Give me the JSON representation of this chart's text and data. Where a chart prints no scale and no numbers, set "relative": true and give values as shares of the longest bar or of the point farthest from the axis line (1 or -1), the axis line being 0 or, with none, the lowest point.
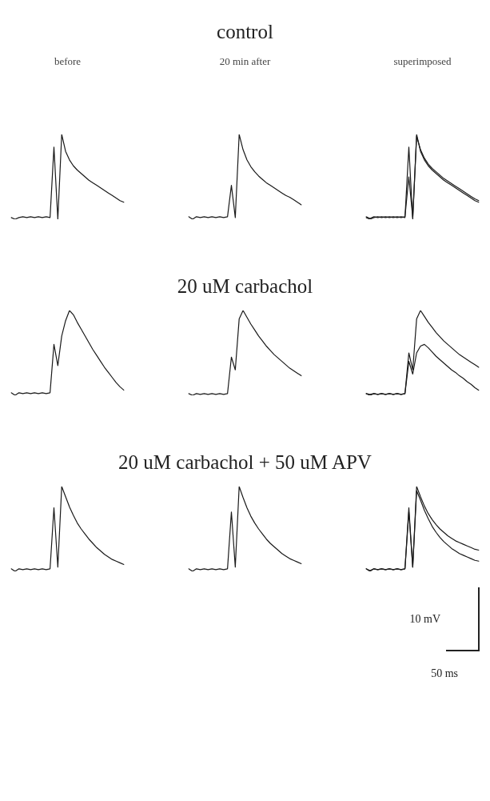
{
  "chart_data": [
    {
      "type": "line",
      "subtitle": "before",
      "relative": true,
      "categories": [
        null,
        null,
        null,
        null,
        null,
        null,
        null,
        null,
        null,
        null,
        null,
        null,
        null,
        null,
        null,
        null,
        null,
        null,
        null,
        null,
        null,
        null,
        null,
        null,
        null,
        null,
        null,
        null,
        null,
        null
      ],
      "color": "#1a1a1a",
      "values": [
        0.02,
        0.0,
        0.02,
        0.03,
        0.02,
        0.03,
        0.02,
        0.03,
        0.02,
        0.03,
        0.02,
        0.85,
        0.0,
        1.0,
        0.8,
        0.7,
        0.63,
        0.58,
        0.54,
        0.5,
        0.46,
        0.43,
        0.4,
        0.37,
        0.34,
        0.31,
        0.28,
        0.25,
        0.22,
        0.2
      ]
    },
    {
      "type": "line",
      "title": "control",
      "subtitle": "20 min after",
      "relative": true,
      "categories": [
        null,
        null,
        null,
        null,
        null,
        null,
        null,
        null,
        null,
        null,
        null,
        null,
        null,
        null,
        null,
        null,
        null,
        null,
        null,
        null,
        null,
        null,
        null,
        null,
        null,
        null,
        null,
        null,
        null,
        null
      ],
      "color": "#1a1a1a",
      "values": [
        0.03,
        0.0,
        0.03,
        0.02,
        0.03,
        0.02,
        0.03,
        0.02,
        0.03,
        0.02,
        0.03,
        0.4,
        0.02,
        1.0,
        0.82,
        0.7,
        0.62,
        0.56,
        0.51,
        0.47,
        0.43,
        0.4,
        0.37,
        0.34,
        0.31,
        0.28,
        0.26,
        0.23,
        0.2,
        0.17
      ]
    },
    {
      "type": "line",
      "subtitle": "superimposed",
      "relative": true,
      "categories": [
        null,
        null,
        null,
        null,
        null,
        null,
        null,
        null,
        null,
        null,
        null,
        null,
        null,
        null,
        null,
        null,
        null,
        null,
        null,
        null,
        null,
        null,
        null,
        null,
        null,
        null,
        null,
        null,
        null,
        null
      ],
      "series": [
        {
          "color": "#1a1a1a",
          "values": [
            0.02,
            0.0,
            0.02,
            0.03,
            0.02,
            0.03,
            0.02,
            0.03,
            0.02,
            0.03,
            0.02,
            0.85,
            0.0,
            1.0,
            0.8,
            0.7,
            0.63,
            0.58,
            0.54,
            0.5,
            0.46,
            0.43,
            0.4,
            0.37,
            0.34,
            0.31,
            0.28,
            0.25,
            0.22,
            0.2
          ]
        },
        {
          "color": "#1a1a1a",
          "values": [
            0.03,
            0.01,
            0.03,
            0.02,
            0.03,
            0.02,
            0.03,
            0.02,
            0.03,
            0.02,
            0.03,
            0.5,
            0.02,
            0.98,
            0.82,
            0.72,
            0.65,
            0.6,
            0.56,
            0.52,
            0.48,
            0.45,
            0.42,
            0.39,
            0.36,
            0.33,
            0.3,
            0.27,
            0.24,
            0.22
          ]
        }
      ]
    },
    {
      "type": "line",
      "relative": true,
      "categories": [
        null,
        null,
        null,
        null,
        null,
        null,
        null,
        null,
        null,
        null,
        null,
        null,
        null,
        null,
        null,
        null,
        null,
        null,
        null,
        null,
        null,
        null,
        null,
        null,
        null,
        null,
        null,
        null,
        null,
        null
      ],
      "color": "#1a1a1a",
      "values": [
        0.03,
        0.0,
        0.03,
        0.02,
        0.03,
        0.02,
        0.03,
        0.02,
        0.03,
        0.02,
        0.03,
        0.6,
        0.35,
        0.7,
        0.88,
        1.0,
        0.95,
        0.86,
        0.78,
        0.7,
        0.62,
        0.54,
        0.47,
        0.4,
        0.33,
        0.27,
        0.21,
        0.15,
        0.1,
        0.06
      ]
    },
    {
      "type": "line",
      "title": "20 uM  carbachol",
      "relative": true,
      "categories": [
        null,
        null,
        null,
        null,
        null,
        null,
        null,
        null,
        null,
        null,
        null,
        null,
        null,
        null,
        null,
        null,
        null,
        null,
        null,
        null,
        null,
        null,
        null,
        null,
        null,
        null,
        null,
        null,
        null,
        null
      ],
      "color": "#1a1a1a",
      "values": [
        0.02,
        0.0,
        0.02,
        0.01,
        0.02,
        0.01,
        0.02,
        0.01,
        0.02,
        0.01,
        0.02,
        0.45,
        0.3,
        0.9,
        1.0,
        0.92,
        0.84,
        0.77,
        0.7,
        0.64,
        0.58,
        0.53,
        0.48,
        0.44,
        0.4,
        0.36,
        0.32,
        0.29,
        0.26,
        0.23
      ]
    },
    {
      "type": "line",
      "relative": true,
      "categories": [
        null,
        null,
        null,
        null,
        null,
        null,
        null,
        null,
        null,
        null,
        null,
        null,
        null,
        null,
        null,
        null,
        null,
        null,
        null,
        null,
        null,
        null,
        null,
        null,
        null,
        null,
        null,
        null,
        null,
        null
      ],
      "series": [
        {
          "color": "#1a1a1a",
          "values": [
            0.02,
            0.0,
            0.02,
            0.01,
            0.02,
            0.01,
            0.02,
            0.01,
            0.02,
            0.01,
            0.02,
            0.5,
            0.3,
            0.9,
            1.0,
            0.93,
            0.86,
            0.8,
            0.74,
            0.69,
            0.64,
            0.6,
            0.56,
            0.52,
            0.48,
            0.45,
            0.42,
            0.39,
            0.36,
            0.33
          ]
        },
        {
          "color": "#1a1a1a",
          "values": [
            0.02,
            0.01,
            0.02,
            0.01,
            0.02,
            0.01,
            0.02,
            0.01,
            0.02,
            0.01,
            0.02,
            0.4,
            0.25,
            0.5,
            0.58,
            0.6,
            0.56,
            0.51,
            0.46,
            0.42,
            0.38,
            0.34,
            0.3,
            0.27,
            0.23,
            0.2,
            0.16,
            0.13,
            0.09,
            0.06
          ]
        }
      ]
    },
    {
      "type": "line",
      "relative": true,
      "categories": [
        null,
        null,
        null,
        null,
        null,
        null,
        null,
        null,
        null,
        null,
        null,
        null,
        null,
        null,
        null,
        null,
        null,
        null,
        null,
        null,
        null,
        null,
        null,
        null,
        null,
        null,
        null,
        null,
        null,
        null
      ],
      "color": "#1a1a1a",
      "values": [
        0.03,
        0.0,
        0.03,
        0.02,
        0.03,
        0.02,
        0.03,
        0.02,
        0.03,
        0.02,
        0.03,
        0.75,
        0.05,
        1.0,
        0.88,
        0.76,
        0.66,
        0.57,
        0.5,
        0.44,
        0.38,
        0.33,
        0.28,
        0.24,
        0.2,
        0.17,
        0.14,
        0.12,
        0.1,
        0.08
      ]
    },
    {
      "type": "line",
      "relative": true,
      "categories": [
        null,
        null,
        null,
        null,
        null,
        null,
        null,
        null,
        null,
        null,
        null,
        null,
        null,
        null,
        null,
        null,
        null,
        null,
        null,
        null,
        null,
        null,
        null,
        null,
        null,
        null,
        null,
        null,
        null,
        null
      ],
      "color": "#1a1a1a",
      "title": "20 uM carbachol + 50 uM APV",
      "values": [
        0.03,
        0.0,
        0.03,
        0.02,
        0.03,
        0.02,
        0.03,
        0.02,
        0.03,
        0.02,
        0.03,
        0.7,
        0.05,
        1.0,
        0.87,
        0.75,
        0.65,
        0.57,
        0.5,
        0.44,
        0.38,
        0.33,
        0.29,
        0.25,
        0.21,
        0.18,
        0.15,
        0.13,
        0.11,
        0.09
      ]
    },
    {
      "type": "line",
      "relative": true,
      "categories": [
        null,
        null,
        null,
        null,
        null,
        null,
        null,
        null,
        null,
        null,
        null,
        null,
        null,
        null,
        null,
        null,
        null,
        null,
        null,
        null,
        null,
        null,
        null,
        null,
        null,
        null,
        null,
        null,
        null,
        null
      ],
      "annotations": [
        "10 mV",
        "50 ms"
      ],
      "series": [
        {
          "color": "#1a1a1a",
          "values": [
            0.03,
            0.0,
            0.03,
            0.02,
            0.03,
            0.02,
            0.03,
            0.02,
            0.03,
            0.02,
            0.03,
            0.75,
            0.05,
            1.0,
            0.88,
            0.77,
            0.68,
            0.61,
            0.55,
            0.5,
            0.46,
            0.42,
            0.39,
            0.36,
            0.34,
            0.32,
            0.3,
            0.28,
            0.26,
            0.25
          ]
        },
        {
          "color": "#1a1a1a",
          "values": [
            0.03,
            0.01,
            0.03,
            0.02,
            0.03,
            0.02,
            0.03,
            0.02,
            0.03,
            0.02,
            0.03,
            0.7,
            0.05,
            0.95,
            0.84,
            0.72,
            0.62,
            0.53,
            0.46,
            0.4,
            0.35,
            0.31,
            0.27,
            0.24,
            0.21,
            0.19,
            0.17,
            0.15,
            0.13,
            0.12
          ]
        }
      ]
    }
  ]
}
